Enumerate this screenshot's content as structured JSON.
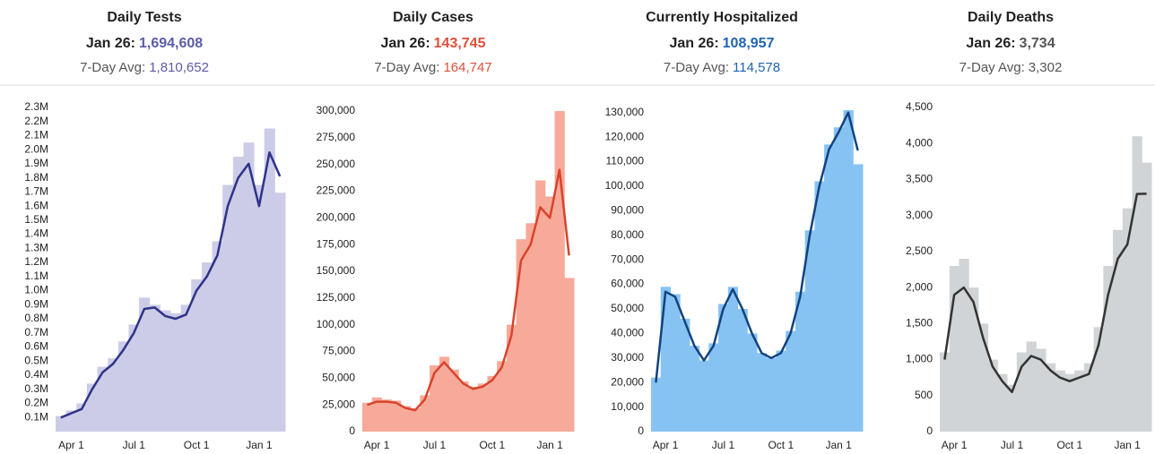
{
  "chart_data": [
    {
      "type": "bar-line",
      "title": "Daily Tests",
      "latest_label": "Jan 26:",
      "latest": "1,694,608",
      "avg_label": "7-Day Avg:",
      "avg": "1,810,652",
      "value_color": "#5c5ca8",
      "categories": [
        null,
        "Apr 1",
        null,
        null,
        null,
        null,
        null,
        "Jul 1",
        null,
        null,
        null,
        null,
        null,
        "Oct 1",
        null,
        null,
        null,
        null,
        null,
        "Jan 1",
        null,
        null
      ],
      "series": [
        {
          "type": "bar",
          "color": "#cdcce8",
          "values": [
            110000,
            150000,
            200000,
            340000,
            460000,
            520000,
            640000,
            760000,
            950000,
            900000,
            860000,
            840000,
            900000,
            1080000,
            1200000,
            1350000,
            1750000,
            1950000,
            2050000,
            1750000,
            2150000,
            1694608
          ]
        },
        {
          "type": "line",
          "color": "#2e3388",
          "values": [
            100000,
            130000,
            160000,
            300000,
            420000,
            480000,
            580000,
            700000,
            870000,
            880000,
            820000,
            800000,
            830000,
            1000000,
            1100000,
            1250000,
            1600000,
            1800000,
            1900000,
            1600000,
            1980000,
            1810652
          ]
        }
      ],
      "ylim": [
        0,
        2350000
      ],
      "yticks": [
        {
          "value": 100000,
          "label": "0.1M"
        },
        {
          "value": 200000,
          "label": "0.2M"
        },
        {
          "value": 300000,
          "label": "0.3M"
        },
        {
          "value": 400000,
          "label": "0.4M"
        },
        {
          "value": 500000,
          "label": "0.5M"
        },
        {
          "value": 600000,
          "label": "0.6M"
        },
        {
          "value": 700000,
          "label": "0.7M"
        },
        {
          "value": 800000,
          "label": "0.8M"
        },
        {
          "value": 900000,
          "label": "0.9M"
        },
        {
          "value": 1000000,
          "label": "1.0M"
        },
        {
          "value": 1100000,
          "label": "1.1M"
        },
        {
          "value": 1200000,
          "label": "1.2M"
        },
        {
          "value": 1300000,
          "label": "1.3M"
        },
        {
          "value": 1400000,
          "label": "1.4M"
        },
        {
          "value": 1500000,
          "label": "1.5M"
        },
        {
          "value": 1600000,
          "label": "1.6M"
        },
        {
          "value": 1700000,
          "label": "1.7M"
        },
        {
          "value": 1800000,
          "label": "1.8M"
        },
        {
          "value": 1900000,
          "label": "1.9M"
        },
        {
          "value": 2000000,
          "label": "2.0M"
        },
        {
          "value": 2100000,
          "label": "2.1M"
        },
        {
          "value": 2200000,
          "label": "2.2M"
        },
        {
          "value": 2300000,
          "label": "2.3M"
        }
      ]
    },
    {
      "type": "bar-line",
      "title": "Daily Cases",
      "latest_label": "Jan 26:",
      "latest": "143,745",
      "avg_label": "7-Day Avg:",
      "avg": "164,747",
      "value_color": "#e0503a",
      "categories": [
        null,
        "Apr 1",
        null,
        null,
        null,
        null,
        null,
        "Jul 1",
        null,
        null,
        null,
        null,
        null,
        "Oct 1",
        null,
        null,
        null,
        null,
        null,
        "Jan 1",
        null,
        null
      ],
      "series": [
        {
          "type": "bar",
          "color": "#f7aa9a",
          "values": [
            27000,
            32000,
            30000,
            29000,
            24000,
            22000,
            34000,
            62000,
            70000,
            58000,
            47000,
            42000,
            45000,
            52000,
            66000,
            100000,
            180000,
            195000,
            235000,
            220000,
            300000,
            143745
          ]
        },
        {
          "type": "line",
          "color": "#d9432b",
          "values": [
            25000,
            28000,
            28000,
            27000,
            22000,
            20000,
            30000,
            55000,
            65000,
            55000,
            45000,
            40000,
            42000,
            48000,
            60000,
            90000,
            160000,
            175000,
            210000,
            200000,
            245000,
            164747
          ]
        }
      ],
      "ylim": [
        0,
        310000
      ],
      "yticks": [
        0,
        {
          "value": 25000,
          "label": "25,000"
        },
        {
          "value": 50000,
          "label": "50,000"
        },
        {
          "value": 75000,
          "label": "75,000"
        },
        {
          "value": 100000,
          "label": "100,000"
        },
        {
          "value": 125000,
          "label": "125,000"
        },
        {
          "value": 150000,
          "label": "150,000"
        },
        {
          "value": 175000,
          "label": "175,000"
        },
        {
          "value": 200000,
          "label": "200,000"
        },
        {
          "value": 225000,
          "label": "225,000"
        },
        {
          "value": 250000,
          "label": "250,000"
        },
        {
          "value": 275000,
          "label": "275,000"
        },
        {
          "value": 300000,
          "label": "300,000"
        }
      ]
    },
    {
      "type": "bar-line",
      "title": "Currently Hospitalized",
      "latest_label": "Jan 26:",
      "latest": "108,957",
      "avg_label": "7-Day Avg:",
      "avg": "114,578",
      "value_color": "#1f63b5",
      "categories": [
        null,
        "Apr 1",
        null,
        null,
        null,
        null,
        null,
        "Jul 1",
        null,
        null,
        null,
        null,
        null,
        "Oct 1",
        null,
        null,
        null,
        null,
        null,
        "Jan 1",
        null,
        null
      ],
      "series": [
        {
          "type": "bar",
          "color": "#86c3f3",
          "values": [
            22000,
            59000,
            56000,
            46000,
            35000,
            29000,
            36000,
            52000,
            59000,
            50000,
            40000,
            32000,
            30000,
            33000,
            41000,
            57000,
            82000,
            102000,
            117000,
            124000,
            131000,
            108957
          ]
        },
        {
          "type": "line",
          "color": "#12427f",
          "values": [
            20000,
            57000,
            55000,
            45000,
            35000,
            29000,
            35000,
            50000,
            58000,
            50000,
            40000,
            32000,
            30000,
            32000,
            40000,
            55000,
            80000,
            100000,
            115000,
            122000,
            130000,
            114578
          ]
        }
      ],
      "ylim": [
        0,
        135000
      ],
      "yticks": [
        0,
        {
          "value": 10000,
          "label": "10,000"
        },
        {
          "value": 20000,
          "label": "20,000"
        },
        {
          "value": 30000,
          "label": "30,000"
        },
        {
          "value": 40000,
          "label": "40,000"
        },
        {
          "value": 50000,
          "label": "50,000"
        },
        {
          "value": 60000,
          "label": "60,000"
        },
        {
          "value": 70000,
          "label": "70,000"
        },
        {
          "value": 80000,
          "label": "80,000"
        },
        {
          "value": 90000,
          "label": "90,000"
        },
        {
          "value": 100000,
          "label": "100,000"
        },
        {
          "value": 110000,
          "label": "110,000"
        },
        {
          "value": 120000,
          "label": "120,000"
        },
        {
          "value": 130000,
          "label": "130,000"
        }
      ]
    },
    {
      "type": "bar-line",
      "title": "Daily Deaths",
      "latest_label": "Jan 26:",
      "latest": "3,734",
      "avg_label": "7-Day Avg:",
      "avg": "3,302",
      "value_color": "#555555",
      "categories": [
        null,
        "Apr 1",
        null,
        null,
        null,
        null,
        null,
        "Jul 1",
        null,
        null,
        null,
        null,
        null,
        "Oct 1",
        null,
        null,
        null,
        null,
        null,
        "Jan 1",
        null,
        null
      ],
      "series": [
        {
          "type": "bar",
          "color": "#d0d4d6",
          "values": [
            1100,
            2300,
            2400,
            2000,
            1500,
            1000,
            800,
            650,
            1100,
            1250,
            1150,
            950,
            850,
            800,
            850,
            950,
            1450,
            2300,
            2800,
            3100,
            4100,
            3734
          ]
        },
        {
          "type": "line",
          "color": "#333333",
          "values": [
            1000,
            1900,
            2000,
            1800,
            1300,
            900,
            700,
            550,
            900,
            1050,
            1000,
            850,
            750,
            700,
            750,
            800,
            1200,
            1900,
            2400,
            2600,
            3300,
            3302
          ]
        }
      ],
      "ylim": [
        0,
        4600
      ],
      "yticks": [
        0,
        500,
        {
          "value": 1000,
          "label": "1,000"
        },
        {
          "value": 1500,
          "label": "1,500"
        },
        {
          "value": 2000,
          "label": "2,000"
        },
        {
          "value": 2500,
          "label": "2,500"
        },
        {
          "value": 3000,
          "label": "3,000"
        },
        {
          "value": 3500,
          "label": "3,500"
        },
        {
          "value": 4000,
          "label": "4,000"
        },
        {
          "value": 4500,
          "label": "4,500"
        }
      ]
    }
  ]
}
